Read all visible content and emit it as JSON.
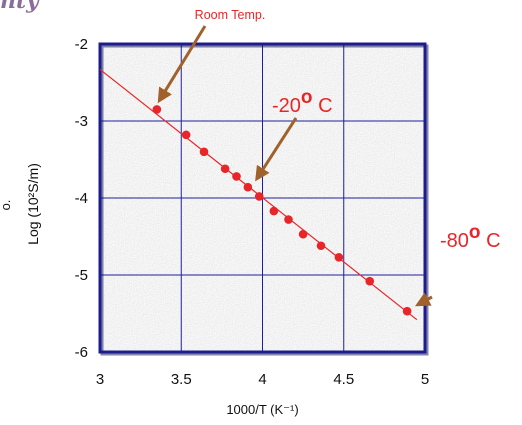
{
  "header_fragment": "nty",
  "chart_data": {
    "type": "scatter",
    "title": "",
    "xlabel": "1000/T (K⁻¹)",
    "ylabel": "Log   (10²S/m)",
    "xlim": [
      3,
      5
    ],
    "ylim": [
      -6,
      -2
    ],
    "x_ticks": [
      3,
      3.5,
      4,
      4.5,
      5
    ],
    "x_tick_labels": [
      "3",
      "3.5",
      "4",
      "4.5",
      "5"
    ],
    "y_ticks": [
      -2,
      -3,
      -4,
      -5,
      -6
    ],
    "y_tick_labels": [
      "-2",
      "-3",
      "-4",
      "-5",
      "-6"
    ],
    "grid": true,
    "colors": {
      "points": "#e8262a",
      "fit_line": "#e8262a",
      "grid": "#1f1f9e",
      "frame": "#1c1c8c",
      "plot_bg": "#e3e3e3",
      "arrows": "#a0612a",
      "labels_red": "#e8262a"
    },
    "series": [
      {
        "x": [
          3.35,
          3.53,
          3.64,
          3.77,
          3.84,
          3.91,
          3.98,
          4.07,
          4.16,
          4.25,
          4.36,
          4.47,
          4.66,
          4.89
        ],
        "y": [
          -2.85,
          -3.18,
          -3.4,
          -3.62,
          -3.72,
          -3.86,
          -3.98,
          -4.17,
          -4.28,
          -4.47,
          -4.62,
          -4.77,
          -5.08,
          -5.47
        ]
      }
    ],
    "fit_line": {
      "x": [
        3.0,
        4.95
      ],
      "y": [
        -2.33,
        -5.58
      ]
    },
    "annotations": [
      {
        "text": "Room Temp.",
        "target_x": 3.34,
        "target_y": -2.84
      },
      {
        "text": "-20° C",
        "prefix": "-20",
        "degree": "o",
        "suffix": " C",
        "target_x": 3.94,
        "target_y": -3.83
      },
      {
        "text": "-80° C",
        "prefix": "-80",
        "degree": "o",
        "suffix": " C",
        "target_x": 4.93,
        "target_y": -5.4
      }
    ],
    "edge_fragment": "o."
  }
}
